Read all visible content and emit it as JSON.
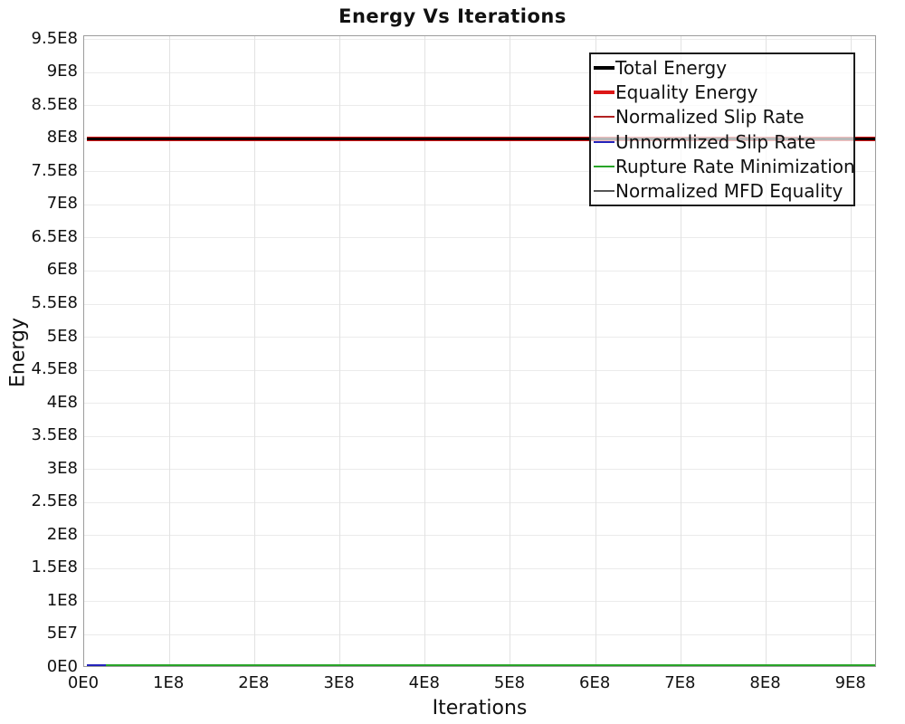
{
  "chart_data": {
    "type": "line",
    "title": "Energy Vs Iterations",
    "xlabel": "Iterations",
    "ylabel": "Energy",
    "xlim": [
      0,
      930000000
    ],
    "ylim": [
      0,
      955000000
    ],
    "grid": true,
    "legend_position": "top-right",
    "x_ticks": {
      "values": [
        0,
        100000000,
        200000000,
        300000000,
        400000000,
        500000000,
        600000000,
        700000000,
        800000000,
        900000000
      ],
      "labels": [
        "0E0",
        "1E8",
        "2E8",
        "3E8",
        "4E8",
        "5E8",
        "6E8",
        "7E8",
        "8E8",
        "9E8"
      ]
    },
    "y_ticks": {
      "values": [
        0,
        50000000,
        100000000,
        150000000,
        200000000,
        250000000,
        300000000,
        350000000,
        400000000,
        450000000,
        500000000,
        550000000,
        600000000,
        650000000,
        700000000,
        750000000,
        800000000,
        850000000,
        900000000,
        950000000
      ],
      "labels": [
        "0E0",
        "5E7",
        "1E8",
        "1.5E8",
        "2E8",
        "2.5E8",
        "3E8",
        "3.5E8",
        "4E8",
        "4.5E8",
        "5E8",
        "5.5E8",
        "6E8",
        "6.5E8",
        "7E8",
        "7.5E8",
        "8E8",
        "8.5E8",
        "9E8",
        "9.5E8"
      ]
    },
    "series": [
      {
        "name": "Total Energy",
        "color": "#000000",
        "thickness": 3,
        "swatch_thickness": 4,
        "points": [
          [
            3000000,
            800000000
          ],
          [
            930000000,
            800000000
          ]
        ]
      },
      {
        "name": "Equality Energy",
        "color": "#dd1717",
        "thickness": 5,
        "swatch_thickness": 4,
        "points": [
          [
            3000000,
            800000000
          ],
          [
            930000000,
            800000000
          ]
        ]
      },
      {
        "name": "Normalized Slip Rate",
        "color": "#b22222",
        "thickness": 2,
        "swatch_thickness": 2,
        "points": [
          [
            3000000,
            800000000
          ],
          [
            930000000,
            800000000
          ]
        ]
      },
      {
        "name": "Unnormlized Slip Rate",
        "color": "#2323bb",
        "thickness": 2,
        "swatch_thickness": 2,
        "points": [
          [
            3000000,
            5000000
          ],
          [
            25000000,
            2500000
          ]
        ]
      },
      {
        "name": "Rupture Rate Minimization",
        "color": "#28a428",
        "thickness": 2,
        "swatch_thickness": 2,
        "points": [
          [
            3000000,
            4000000
          ],
          [
            930000000,
            4000000
          ]
        ]
      },
      {
        "name": "Normalized MFD Equality",
        "color": "#555555",
        "thickness": 2,
        "swatch_thickness": 2,
        "points": [
          [
            3000000,
            1500000
          ],
          [
            930000000,
            1500000
          ]
        ]
      }
    ]
  }
}
